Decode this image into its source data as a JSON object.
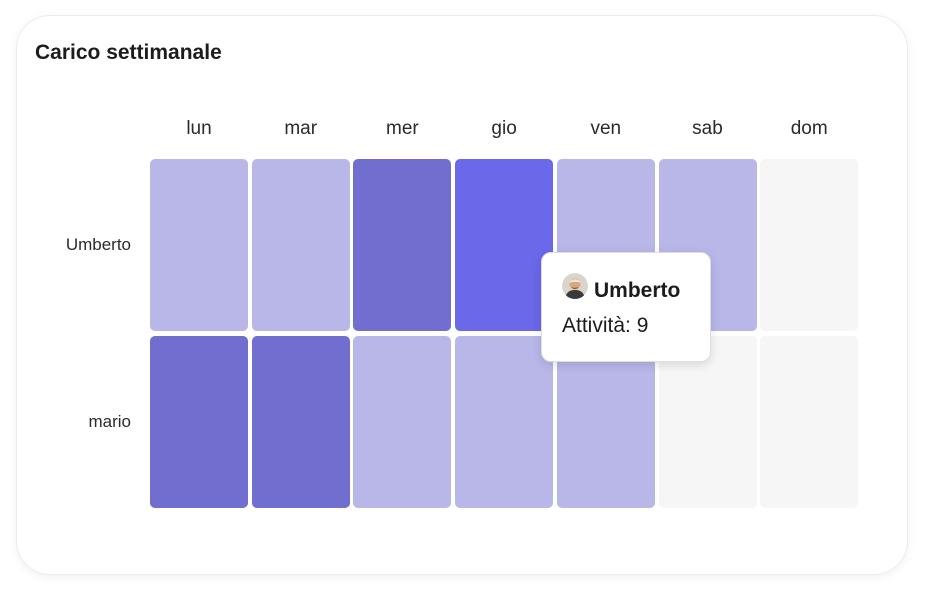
{
  "title": "Carico settimanale",
  "chart_data": {
    "type": "heatmap",
    "title": "Carico settimanale",
    "x_categories": [
      "lun",
      "mar",
      "mer",
      "gio",
      "ven",
      "sab",
      "dom"
    ],
    "y_categories": [
      "Umberto",
      "mario"
    ],
    "values": [
      [
        3,
        3,
        7,
        9,
        3,
        3,
        0
      ],
      [
        6,
        6,
        3,
        3,
        3,
        0,
        0
      ]
    ],
    "colors": {
      "empty": "#f6f6f6",
      "low": "#b8b7e8",
      "mid": "#726ecf",
      "high": "#6b68ea"
    },
    "legend": "none",
    "grid": false
  },
  "tooltip": {
    "name": "Umberto",
    "value_text": "Attività: 9",
    "avatar_icon": "user-avatar"
  }
}
